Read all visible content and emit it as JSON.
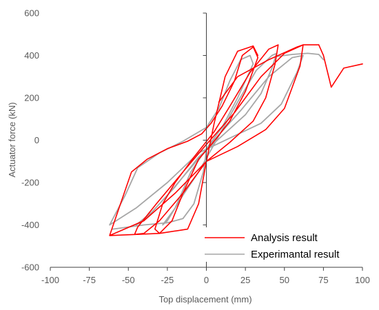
{
  "chart_data": {
    "type": "line",
    "xlabel": "Top displacement (mm)",
    "ylabel": "Actuator force (kN)",
    "xlim": [
      -100,
      100
    ],
    "ylim": [
      -600,
      600
    ],
    "xticks": [
      -100,
      -75,
      -50,
      -25,
      0,
      25,
      50,
      75,
      100
    ],
    "yticks": [
      -600,
      -400,
      -200,
      0,
      200,
      400,
      600
    ],
    "grid": false,
    "legend_position": "bottom-right",
    "series": [
      {
        "name": "Analysis result",
        "color": "#ff0000",
        "segments": [
          [
            [
              -62,
              -450
            ],
            [
              -55,
              -300
            ],
            [
              -48,
              -150
            ],
            [
              -38,
              -90
            ],
            [
              -25,
              -40
            ],
            [
              -12,
              -5
            ],
            [
              -3,
              30
            ],
            [
              3,
              80
            ],
            [
              10,
              160
            ],
            [
              18,
              280
            ],
            [
              23,
              400
            ],
            [
              30,
              440
            ],
            [
              33,
              390
            ],
            [
              25,
              230
            ],
            [
              15,
              90
            ],
            [
              5,
              -5
            ],
            [
              -5,
              -90
            ],
            [
              -15,
              -250
            ],
            [
              -22,
              -380
            ],
            [
              -30,
              -440
            ],
            [
              -33,
              -420
            ],
            [
              -28,
              -300
            ],
            [
              -20,
              -200
            ],
            [
              -8,
              -80
            ],
            [
              5,
              40
            ],
            [
              15,
              160
            ],
            [
              28,
              320
            ],
            [
              40,
              430
            ],
            [
              46,
              450
            ],
            [
              44,
              360
            ],
            [
              38,
              200
            ],
            [
              30,
              90
            ],
            [
              15,
              -10
            ],
            [
              0,
              -100
            ],
            [
              -15,
              -250
            ],
            [
              -30,
              -380
            ],
            [
              -40,
              -440
            ],
            [
              -46,
              -445
            ],
            [
              -44,
              -410
            ],
            [
              -32,
              -300
            ],
            [
              -15,
              -150
            ],
            [
              0,
              -20
            ],
            [
              18,
              130
            ],
            [
              35,
              300
            ],
            [
              50,
              410
            ],
            [
              62,
              450
            ],
            [
              60,
              350
            ],
            [
              50,
              150
            ],
            [
              38,
              50
            ],
            [
              20,
              -30
            ],
            [
              0,
              -100
            ],
            [
              -20,
              -250
            ],
            [
              -40,
              -380
            ],
            [
              -62,
              -450
            ],
            [
              -30,
              -440
            ],
            [
              -12,
              -420
            ],
            [
              -5,
              -300
            ],
            [
              0,
              -100
            ],
            [
              5,
              80
            ],
            [
              12,
              300
            ],
            [
              20,
              420
            ],
            [
              30,
              445
            ],
            [
              33,
              400
            ]
          ],
          [
            [
              72,
              450
            ],
            [
              62,
              450
            ],
            [
              58,
              440
            ],
            [
              52,
              420
            ],
            [
              40,
              380
            ],
            [
              20,
              300
            ],
            [
              8,
              180
            ]
          ],
          [
            [
              72,
              450
            ],
            [
              75,
              400
            ],
            [
              80,
              250
            ],
            [
              88,
              340
            ],
            [
              100,
              360
            ]
          ]
        ]
      },
      {
        "name": "Experimantal result",
        "color": "#a6a6a6",
        "segments": [
          [
            [
              -62,
              -400
            ],
            [
              -52,
              -260
            ],
            [
              -44,
              -130
            ],
            [
              -30,
              -60
            ],
            [
              -15,
              -5
            ],
            [
              0,
              60
            ],
            [
              8,
              150
            ],
            [
              15,
              280
            ],
            [
              22,
              380
            ],
            [
              28,
              400
            ],
            [
              30,
              360
            ],
            [
              20,
              200
            ],
            [
              10,
              60
            ],
            [
              0,
              -40
            ],
            [
              -10,
              -150
            ],
            [
              -20,
              -320
            ],
            [
              -28,
              -400
            ],
            [
              -25,
              -380
            ],
            [
              -15,
              -260
            ],
            [
              -5,
              -150
            ],
            [
              8,
              20
            ],
            [
              20,
              180
            ],
            [
              32,
              330
            ],
            [
              42,
              400
            ],
            [
              45,
              410
            ],
            [
              42,
              340
            ],
            [
              35,
              220
            ],
            [
              25,
              120
            ],
            [
              10,
              20
            ],
            [
              -5,
              -80
            ],
            [
              -20,
              -220
            ],
            [
              -35,
              -340
            ],
            [
              -45,
              -400
            ],
            [
              -40,
              -380
            ],
            [
              -25,
              -260
            ],
            [
              -10,
              -130
            ],
            [
              5,
              0
            ],
            [
              22,
              140
            ],
            [
              40,
              300
            ],
            [
              55,
              390
            ],
            [
              62,
              400
            ],
            [
              58,
              320
            ],
            [
              48,
              170
            ],
            [
              35,
              80
            ],
            [
              15,
              10
            ],
            [
              -5,
              -60
            ],
            [
              -25,
              -200
            ],
            [
              -45,
              -320
            ],
            [
              -62,
              -400
            ]
          ],
          [
            [
              -60,
              -420
            ],
            [
              -40,
              -400
            ],
            [
              -25,
              -390
            ],
            [
              -15,
              -370
            ],
            [
              -8,
              -300
            ],
            [
              -2,
              -150
            ],
            [
              0,
              -50
            ]
          ],
          [
            [
              45,
              395
            ],
            [
              55,
              405
            ],
            [
              65,
              410
            ],
            [
              72,
              405
            ],
            [
              75,
              380
            ]
          ]
        ]
      }
    ]
  }
}
